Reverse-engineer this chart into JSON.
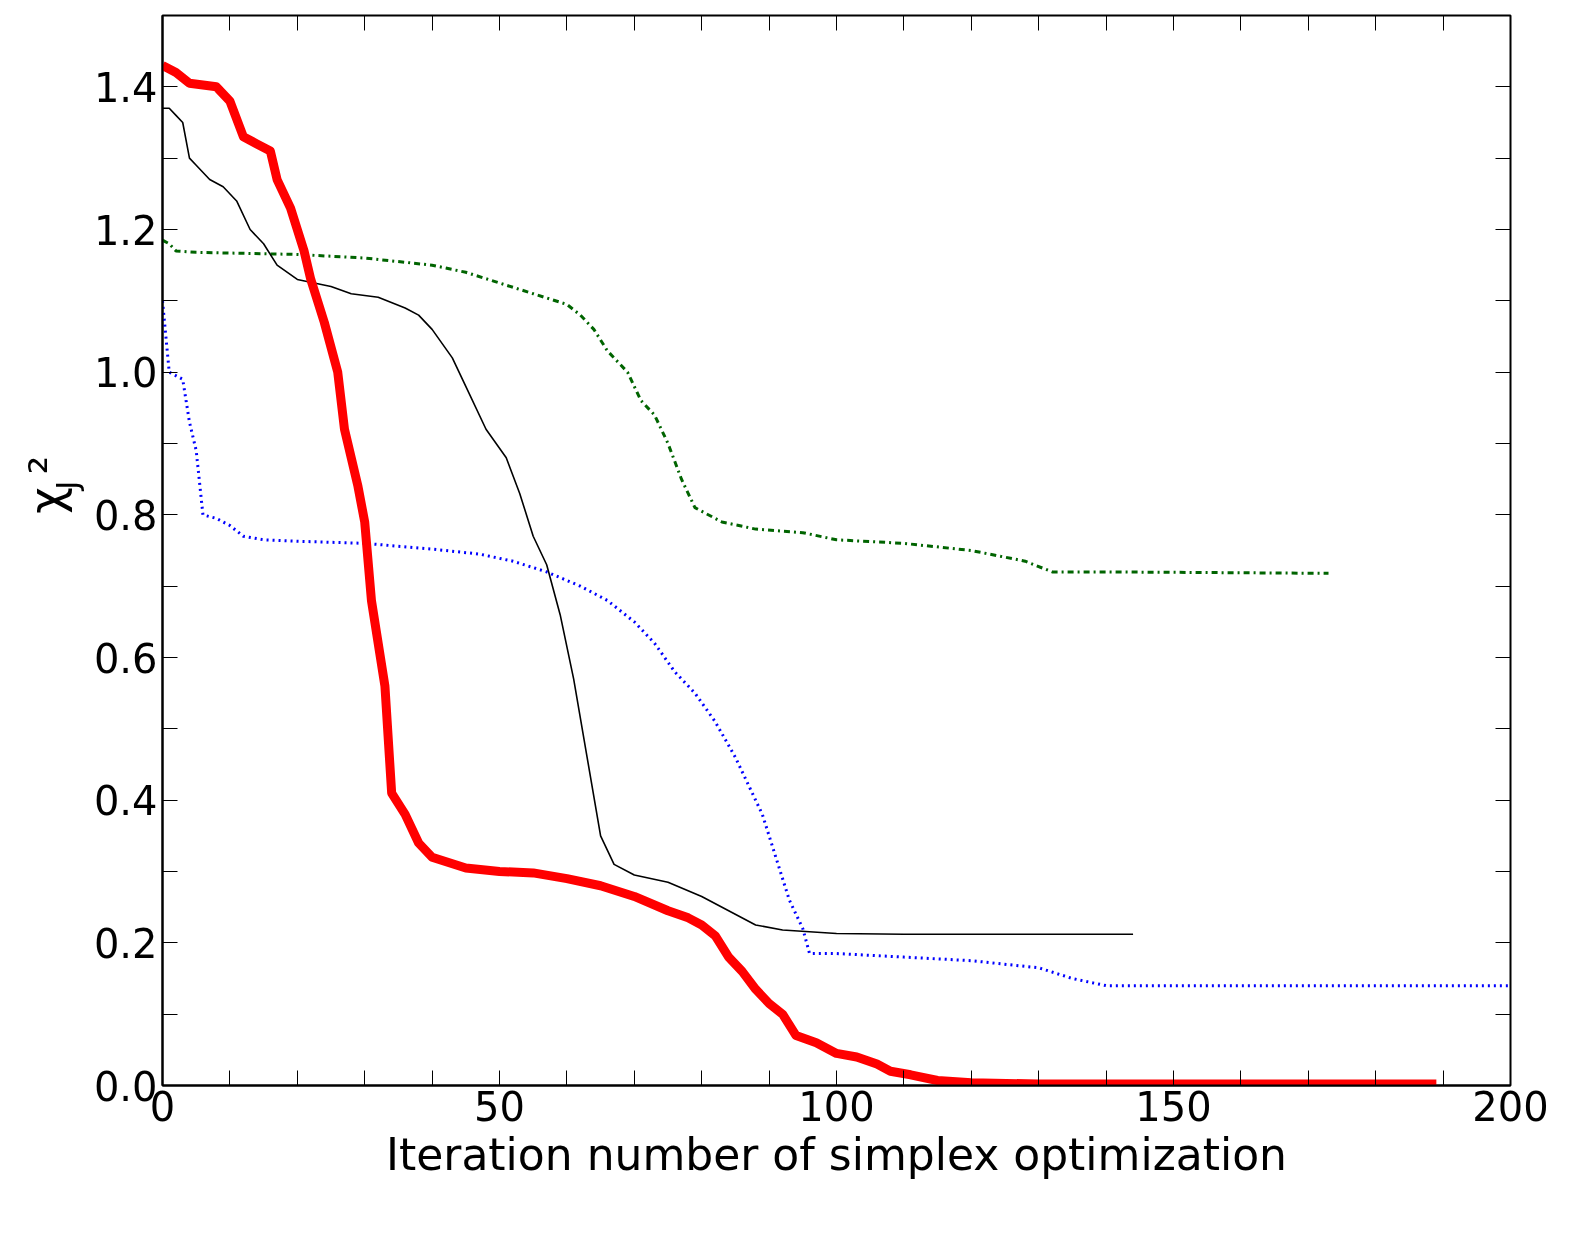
{
  "chart_data": {
    "type": "line",
    "xlabel": "Iteration number of simplex optimization",
    "ylabel": "χ$_{J}$²",
    "xlim": [
      0,
      200
    ],
    "ylim": [
      0,
      1.5
    ],
    "xticks": [
      0,
      {
        "value": 10,
        "label": null
      },
      {
        "value": 20,
        "label": null
      },
      {
        "value": 30,
        "label": null
      },
      {
        "value": 40,
        "label": null
      },
      50,
      {
        "value": 60,
        "label": null
      },
      {
        "value": 70,
        "label": null
      },
      {
        "value": 80,
        "label": null
      },
      {
        "value": 90,
        "label": null
      },
      100,
      {
        "value": 110,
        "label": null
      },
      {
        "value": 120,
        "label": null
      },
      {
        "value": 130,
        "label": null
      },
      {
        "value": 140,
        "label": null
      },
      150,
      {
        "value": 160,
        "label": null
      },
      {
        "value": 170,
        "label": null
      },
      {
        "value": 180,
        "label": null
      },
      {
        "value": 190,
        "label": null
      },
      200
    ],
    "yticks": [
      {
        "value": 0,
        "label": "0.0"
      },
      {
        "value": 0.1,
        "label": null
      },
      0.2,
      {
        "value": 0.3,
        "label": null
      },
      0.4,
      {
        "value": 0.5,
        "label": null
      },
      0.6,
      {
        "value": 0.7,
        "label": null
      },
      0.8,
      {
        "value": 0.9,
        "label": null
      },
      {
        "value": 1.0,
        "label": "1.0"
      },
      {
        "value": 1.1,
        "label": null
      },
      1.2,
      {
        "value": 1.3,
        "label": null
      },
      1.4
    ],
    "grid": false,
    "marker": "none",
    "series": [
      {
        "color": "#006400",
        "line_style": "dashdot",
        "x": [
          0,
          1,
          2,
          5,
          20,
          30,
          40,
          45,
          50,
          55,
          60,
          62,
          64,
          66,
          69,
          71,
          73,
          75,
          77,
          79,
          83,
          88,
          95,
          100,
          110,
          120,
          128,
          132,
          140,
          173
        ],
        "values": [
          1.185,
          1.18,
          1.17,
          1.168,
          1.165,
          1.16,
          1.15,
          1.14,
          1.125,
          1.11,
          1.095,
          1.08,
          1.06,
          1.03,
          1.0,
          0.96,
          0.94,
          0.9,
          0.85,
          0.81,
          0.79,
          0.78,
          0.775,
          0.765,
          0.76,
          0.75,
          0.735,
          0.72,
          0.72,
          0.718
        ]
      },
      {
        "color": "#0000ff",
        "line_style": "dotted",
        "x": [
          0,
          1,
          3,
          4,
          5,
          6,
          8,
          10,
          12,
          15,
          20,
          30,
          40,
          47,
          52,
          57,
          62,
          66,
          70,
          73,
          76,
          79,
          82,
          85,
          87,
          89,
          91,
          93,
          95,
          96,
          100,
          110,
          120,
          130,
          135,
          140,
          200
        ],
        "values": [
          1.1,
          1.0,
          0.99,
          0.93,
          0.89,
          0.8,
          0.795,
          0.785,
          0.77,
          0.765,
          0.763,
          0.76,
          0.752,
          0.745,
          0.735,
          0.72,
          0.7,
          0.68,
          0.65,
          0.62,
          0.58,
          0.55,
          0.51,
          0.46,
          0.42,
          0.38,
          0.32,
          0.26,
          0.22,
          0.185,
          0.185,
          0.18,
          0.175,
          0.165,
          0.15,
          0.14,
          0.14
        ]
      },
      {
        "color": "#000000",
        "line_style": "solid",
        "x": [
          0,
          1,
          2,
          3,
          4,
          5,
          7,
          9,
          11,
          13,
          15,
          17,
          20,
          25,
          28,
          32,
          36,
          38,
          40,
          43,
          45,
          48,
          51,
          53,
          55,
          57,
          59,
          61,
          63,
          65,
          67,
          70,
          75,
          80,
          84,
          88,
          92,
          100,
          110,
          144
        ],
        "values": [
          1.37,
          1.37,
          1.36,
          1.35,
          1.3,
          1.29,
          1.27,
          1.26,
          1.24,
          1.2,
          1.18,
          1.15,
          1.13,
          1.12,
          1.11,
          1.105,
          1.09,
          1.08,
          1.06,
          1.02,
          0.98,
          0.92,
          0.88,
          0.83,
          0.77,
          0.73,
          0.66,
          0.57,
          0.46,
          0.35,
          0.31,
          0.295,
          0.285,
          0.265,
          0.245,
          0.225,
          0.218,
          0.213,
          0.212,
          0.212
        ]
      },
      {
        "color": "#ff0000",
        "line_style": "solid",
        "x": [
          0,
          2,
          4,
          8,
          10,
          12,
          14,
          16,
          17,
          19,
          21,
          22,
          24,
          26,
          27,
          29,
          30,
          31,
          33,
          34,
          36,
          38,
          40,
          45,
          50,
          55,
          60,
          65,
          70,
          75,
          78,
          80,
          82,
          84,
          86,
          88,
          90,
          92,
          94,
          97,
          100,
          103,
          106,
          108,
          111,
          115,
          120,
          130,
          150,
          189
        ],
        "values": [
          1.43,
          1.42,
          1.405,
          1.4,
          1.38,
          1.33,
          1.32,
          1.31,
          1.27,
          1.23,
          1.17,
          1.13,
          1.07,
          1.0,
          0.92,
          0.84,
          0.79,
          0.68,
          0.56,
          0.41,
          0.38,
          0.34,
          0.32,
          0.305,
          0.3,
          0.298,
          0.29,
          0.28,
          0.265,
          0.245,
          0.235,
          0.225,
          0.21,
          0.18,
          0.16,
          0.135,
          0.115,
          0.1,
          0.07,
          0.06,
          0.045,
          0.04,
          0.03,
          0.02,
          0.015,
          0.007,
          0.004,
          0.002,
          0.002,
          0.002
        ]
      }
    ]
  }
}
